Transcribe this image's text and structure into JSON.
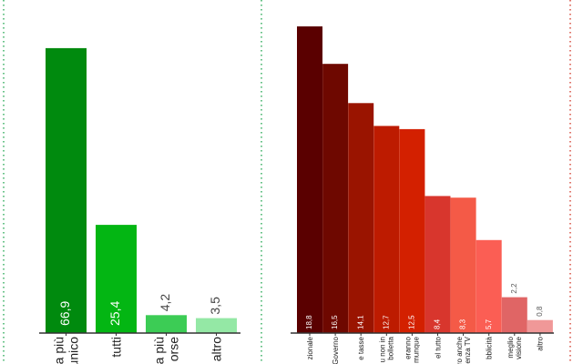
{
  "chart_data": [
    {
      "type": "bar",
      "categories": [
        "a più\nunico",
        "tutti",
        "a più\norse",
        "altro"
      ],
      "values": [
        66.9,
        25.4,
        4.2,
        3.5
      ],
      "value_labels": [
        "66,9",
        "25,4",
        "4,2",
        "3,5"
      ],
      "colors": [
        "#008a0e",
        "#03b613",
        "#3ccc55",
        "#94e8a5"
      ],
      "ylim": [
        0,
        75
      ],
      "title": "",
      "xlabel": "",
      "ylabel": "",
      "grid": false,
      "separator_color": "#1aa34a"
    },
    {
      "type": "bar",
      "categories": [
        "zionale",
        "Governo",
        "e tasse",
        "u non in\nbolletta",
        "eranno\nmunque",
        "el tutto",
        "ro anche\nenza TV",
        "bblicità",
        "meglio\nvisione",
        "altro"
      ],
      "values": [
        18.8,
        16.5,
        14.1,
        12.7,
        12.5,
        8.4,
        8.3,
        5.7,
        2.2,
        0.8
      ],
      "value_labels": [
        "18,8",
        "16,5",
        "14,1",
        "12,7",
        "12,5",
        "8,4",
        "8,3",
        "5,7",
        "2,2",
        "0,8"
      ],
      "colors": [
        "#5a0000",
        "#6e0800",
        "#9a1400",
        "#bd1b00",
        "#d32000",
        "#d8362d",
        "#f45a47",
        "#fb5e54",
        "#e06565",
        "#f09898"
      ],
      "ylim": [
        0,
        20
      ],
      "title": "",
      "xlabel": "",
      "ylabel": "",
      "grid": false,
      "separator_color": "#d03020"
    }
  ]
}
